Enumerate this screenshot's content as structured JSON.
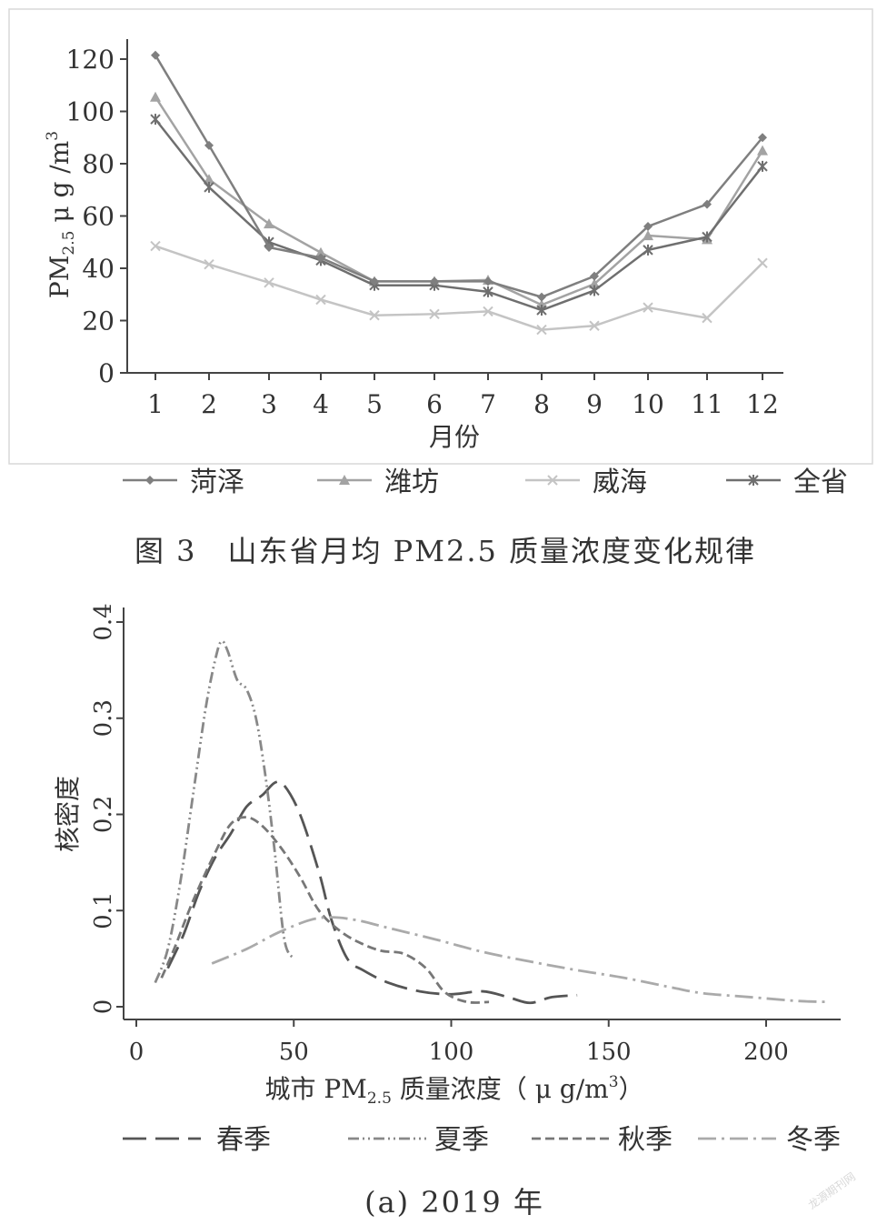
{
  "chart_data": [
    {
      "type": "line",
      "xlabel": "月份",
      "ylabel": {
        "main": "PM",
        "sub": "2.5",
        "unit": " μ g /m",
        "sup": "3"
      },
      "ylim": [
        0,
        120
      ],
      "yticks": [
        0,
        20,
        40,
        60,
        80,
        100,
        120
      ],
      "x": [
        1,
        2,
        3,
        4,
        5,
        6,
        7,
        8,
        9,
        10,
        11,
        12
      ],
      "legend_position": "bottom",
      "series": [
        {
          "name": "菏泽",
          "marker": "diamond",
          "color": "#7f7f7f",
          "values": [
            121.5,
            87,
            48,
            44,
            35,
            35,
            35,
            29,
            37,
            56,
            64.5,
            90
          ]
        },
        {
          "name": "潍坊",
          "marker": "triangle",
          "color": "#a3a3a3",
          "values": [
            105.5,
            74,
            57,
            46,
            35,
            35,
            35.5,
            26,
            34,
            52.5,
            51,
            85
          ]
        },
        {
          "name": "威海",
          "marker": "x",
          "color": "#c4c4c4",
          "values": [
            48.5,
            41.5,
            34.5,
            28,
            22,
            22.5,
            23.5,
            16.5,
            18,
            25,
            21,
            42
          ]
        },
        {
          "name": "全省",
          "marker": "star",
          "color": "#6f6f6f",
          "values": [
            97,
            71,
            50,
            43,
            33.5,
            33.5,
            31,
            24,
            31.5,
            47,
            52,
            79
          ]
        }
      ],
      "caption": "图 3　山东省月均 PM2.5 质量浓度变化规律"
    },
    {
      "type": "line",
      "xlabel": {
        "pre": "城市 PM",
        "sub": "2.5",
        "post": " 质量浓度（ μ g/m",
        "sup": "3",
        "end": "）"
      },
      "ylabel": "核密度",
      "xlim": [
        -5,
        225
      ],
      "ylim": [
        -0.01,
        0.41
      ],
      "xticks": [
        0,
        50,
        100,
        150,
        200
      ],
      "yticks": [
        0,
        0.1,
        0.2,
        0.3,
        0.4
      ],
      "ytick_labels": [
        "0",
        "0.1",
        "0.2",
        "0.3",
        "0.4"
      ],
      "legend_position": "bottom",
      "series": [
        {
          "name": "春季",
          "dash": "26 10",
          "color": "#555555",
          "points": [
            [
              10,
              0.04
            ],
            [
              15,
              0.075
            ],
            [
              20,
              0.12
            ],
            [
              25,
              0.155
            ],
            [
              30,
              0.18
            ],
            [
              35,
              0.208
            ],
            [
              40,
              0.22
            ],
            [
              44,
              0.233
            ],
            [
              47,
              0.23
            ],
            [
              52,
              0.2
            ],
            [
              58,
              0.14
            ],
            [
              62,
              0.09
            ],
            [
              67,
              0.05
            ],
            [
              72,
              0.038
            ],
            [
              80,
              0.025
            ],
            [
              90,
              0.016
            ],
            [
              100,
              0.013
            ],
            [
              110,
              0.016
            ],
            [
              118,
              0.01
            ],
            [
              125,
              0.004
            ],
            [
              132,
              0.01
            ],
            [
              140,
              0.012
            ]
          ]
        },
        {
          "name": "夏季",
          "dash": "12 4 2 4 2 4",
          "color": "#888888",
          "points": [
            [
              6,
              0.025
            ],
            [
              10,
              0.06
            ],
            [
              14,
              0.13
            ],
            [
              18,
              0.22
            ],
            [
              22,
              0.31
            ],
            [
              25,
              0.36
            ],
            [
              27,
              0.38
            ],
            [
              29,
              0.37
            ],
            [
              32,
              0.34
            ],
            [
              35,
              0.33
            ],
            [
              38,
              0.3
            ],
            [
              41,
              0.24
            ],
            [
              44,
              0.16
            ],
            [
              47,
              0.07
            ],
            [
              50,
              0.05
            ]
          ]
        },
        {
          "name": "秋季",
          "dash": "10 5",
          "color": "#777777",
          "points": [
            [
              8,
              0.03
            ],
            [
              12,
              0.06
            ],
            [
              18,
              0.11
            ],
            [
              25,
              0.16
            ],
            [
              30,
              0.19
            ],
            [
              35,
              0.197
            ],
            [
              40,
              0.188
            ],
            [
              46,
              0.165
            ],
            [
              52,
              0.135
            ],
            [
              58,
              0.1
            ],
            [
              65,
              0.078
            ],
            [
              72,
              0.065
            ],
            [
              78,
              0.058
            ],
            [
              85,
              0.055
            ],
            [
              92,
              0.04
            ],
            [
              98,
              0.015
            ],
            [
              105,
              0.005
            ],
            [
              112,
              0.005
            ]
          ]
        },
        {
          "name": "冬季",
          "dash": "20 6 3 6",
          "color": "#aaaaaa",
          "points": [
            [
              24,
              0.045
            ],
            [
              35,
              0.06
            ],
            [
              45,
              0.077
            ],
            [
              55,
              0.09
            ],
            [
              62,
              0.093
            ],
            [
              70,
              0.09
            ],
            [
              80,
              0.082
            ],
            [
              95,
              0.07
            ],
            [
              110,
              0.057
            ],
            [
              125,
              0.047
            ],
            [
              140,
              0.038
            ],
            [
              155,
              0.03
            ],
            [
              170,
              0.02
            ],
            [
              180,
              0.014
            ],
            [
              195,
              0.01
            ],
            [
              210,
              0.006
            ],
            [
              220,
              0.005
            ]
          ]
        }
      ],
      "caption": "(a) 2019 年"
    }
  ],
  "watermark": "龙源期刊网"
}
